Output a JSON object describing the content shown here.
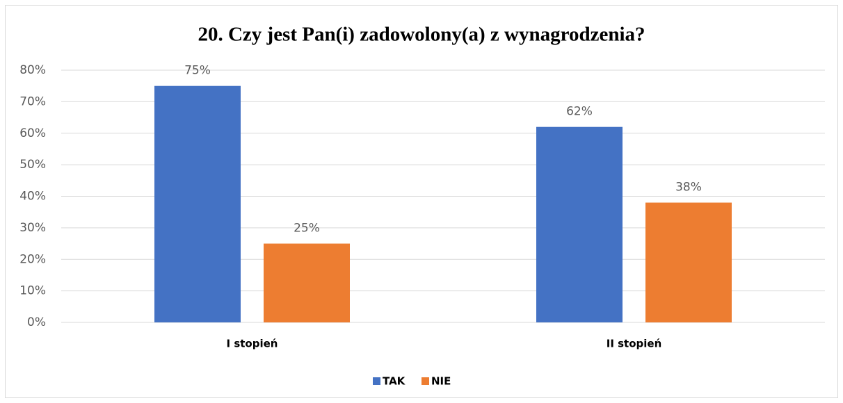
{
  "chart_data": {
    "type": "bar",
    "title": "20. Czy jest Pan(i) zadowolony(a) z wynagrodzenia?",
    "categories": [
      "I stopień",
      "II stopień"
    ],
    "series": [
      {
        "name": "TAK",
        "color": "#4472c4",
        "values": [
          75,
          62
        ],
        "value_labels": [
          "75%",
          "62%"
        ]
      },
      {
        "name": "NIE",
        "color": "#ed7d31",
        "values": [
          25,
          38
        ],
        "value_labels": [
          "25%",
          "38%"
        ]
      }
    ],
    "ylim": [
      0,
      80
    ],
    "yticks": [
      {
        "value": 0,
        "label": "0%"
      },
      {
        "value": 10,
        "label": "10%"
      },
      {
        "value": 20,
        "label": "20%"
      },
      {
        "value": 30,
        "label": "30%"
      },
      {
        "value": 40,
        "label": "40%"
      },
      {
        "value": 50,
        "label": "50%"
      },
      {
        "value": 60,
        "label": "60%"
      },
      {
        "value": 70,
        "label": "70%"
      },
      {
        "value": 80,
        "label": "80%"
      }
    ],
    "grid": true,
    "legend": "bottom"
  }
}
